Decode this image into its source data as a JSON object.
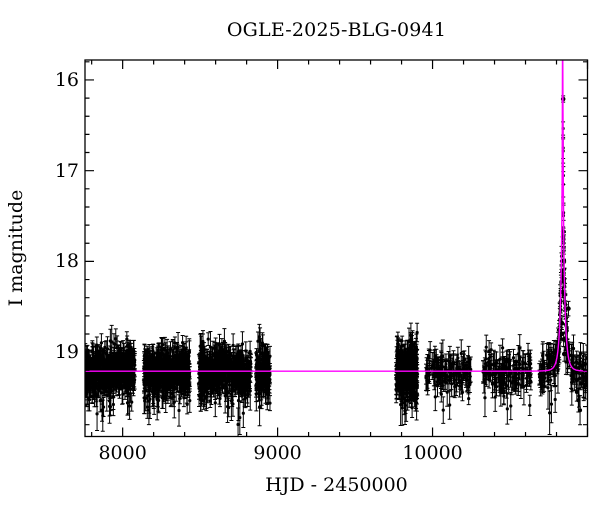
{
  "chart": {
    "title": "OGLE-2025-BLG-0941",
    "xlabel": "HJD - 2450000",
    "ylabel": "I magnitude"
  },
  "chart_data": {
    "type": "scatter",
    "title": "OGLE-2025-BLG-0941",
    "xlabel": "HJD - 2450000",
    "ylabel": "I magnitude",
    "legend": "none",
    "grid": false,
    "x_axis": {
      "min": 7757,
      "max": 11000,
      "labeled_ticks": [
        {
          "value": 8000,
          "label": "8000"
        },
        {
          "value": 9000,
          "label": "9000"
        },
        {
          "value": 10000,
          "label": "10000"
        }
      ],
      "unlabeled_major_ticks": [
        11000
      ],
      "minor_tick_step": 200
    },
    "y_axis": {
      "min": 15.78,
      "max": 19.93,
      "inverted": true,
      "labeled_ticks": [
        {
          "value": 16,
          "label": "16"
        },
        {
          "value": 17,
          "label": "17"
        },
        {
          "value": 18,
          "label": "18"
        },
        {
          "value": 19,
          "label": "19"
        }
      ],
      "minor_tick_step": 0.2
    },
    "baseline_mag": 19.21,
    "model": {
      "form": "paczynski",
      "t0": 10840,
      "tE": 26,
      "u0": 0.0015
    },
    "seed": 20250941,
    "seasons": [
      {
        "t_start": 7757,
        "t_end": 8079,
        "n": 500,
        "mag_sigma": 0.12,
        "err_mean": 0.1
      },
      {
        "t_start": 8137,
        "t_end": 8434,
        "n": 460,
        "mag_sigma": 0.12,
        "err_mean": 0.1
      },
      {
        "t_start": 8492,
        "t_end": 8828,
        "n": 500,
        "mag_sigma": 0.12,
        "err_mean": 0.1
      },
      {
        "t_start": 8861,
        "t_end": 8951,
        "n": 150,
        "mag_sigma": 0.13,
        "err_mean": 0.1
      },
      {
        "t_start": 9764,
        "t_end": 9902,
        "n": 320,
        "mag_sigma": 0.14,
        "err_mean": 0.11
      },
      {
        "t_start": 9956,
        "t_end": 10249,
        "n": 140,
        "mag_sigma": 0.1,
        "err_mean": 0.11
      },
      {
        "t_start": 10324,
        "t_end": 10636,
        "n": 140,
        "mag_sigma": 0.095,
        "err_mean": 0.11
      },
      {
        "t_start": 10688,
        "t_end": 10997,
        "n": 150,
        "mag_sigma": 0.095,
        "err_mean": 0.11
      },
      {
        "t_start": 10805,
        "t_end": 10875,
        "n": 40,
        "mag_sigma": 0.1,
        "err_mean": 0.11
      }
    ],
    "peak_points": [
      {
        "t": 10843,
        "mag": 16.21,
        "err": 0.035
      },
      {
        "t": 10843,
        "mag": 17.67,
        "err": 0.05
      },
      {
        "t": 10842,
        "mag": 17.73,
        "err": 0.05
      },
      {
        "t": 10839,
        "mag": 18.18,
        "err": 0.06
      },
      {
        "t": 10839,
        "mag": 18.34,
        "err": 0.06
      },
      {
        "t": 10877,
        "mag": 18.52,
        "err": 0.08
      },
      {
        "t": 10835,
        "mag": 18.68,
        "err": 0.07
      },
      {
        "t": 10832,
        "mag": 18.8,
        "err": 0.07
      },
      {
        "t": 10846,
        "mag": 18.86,
        "err": 0.08
      },
      {
        "t": 10850,
        "mag": 19.02,
        "err": 0.08
      }
    ],
    "faint_outliers": [
      {
        "t": 10931,
        "mag": 19.44,
        "err": 0.1
      },
      {
        "t": 10941,
        "mag": 19.53,
        "err": 0.13
      },
      {
        "t": 10952,
        "mag": 19.64,
        "err": 0.16
      }
    ]
  },
  "style": {
    "background": "#ffffff",
    "frame_color": "#000000",
    "data_color": "#000000",
    "model_color": "#ff00ff"
  }
}
